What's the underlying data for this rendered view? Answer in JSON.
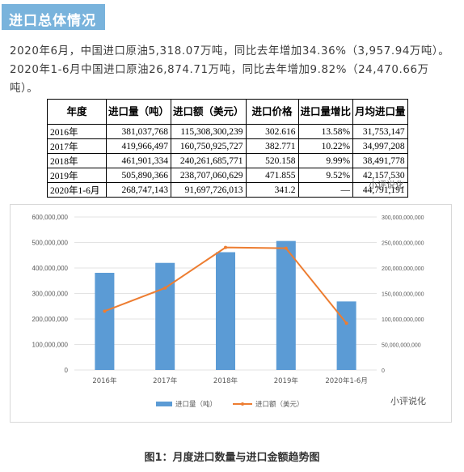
{
  "header": {
    "title": "进口总体情况"
  },
  "intro": "2020年6月，中国进口原油5,318.07万吨，同比去年增加34.36%（3,957.94万吨）。2020年1-6月中国进口原油26,874.71万吨，同比去年增加9.82%（24,470.66万吨）。",
  "table": {
    "headers": [
      "年度",
      "进口量（吨）",
      "进口额（美元）",
      "进口价格",
      "进口量增比",
      "月均进口量"
    ],
    "rows": [
      [
        "2016年",
        "381,037,768",
        "115,308,300,239",
        "302.616",
        "13.58%",
        "31,753,147"
      ],
      [
        "2017年",
        "419,966,497",
        "160,750,925,727",
        "382.771",
        "10.22%",
        "34,997,208"
      ],
      [
        "2018年",
        "461,901,334",
        "240,261,685,771",
        "520.158",
        "9.99%",
        "38,491,778"
      ],
      [
        "2019年",
        "505,890,366",
        "238,707,060,629",
        "471.855",
        "9.52%",
        "42,157,530"
      ],
      [
        "2020年1-6月",
        "268,747,143",
        "91,697,726,013",
        "341.2",
        "—",
        "44,791,191"
      ]
    ]
  },
  "watermark": "小评说化",
  "chart_data": {
    "type": "bar",
    "categories": [
      "2016年",
      "2017年",
      "2018年",
      "2019年",
      "2020年1-6月"
    ],
    "series": [
      {
        "name": "进口量（吨）",
        "type": "bar",
        "axis": "left",
        "color": "#5b9bd5",
        "values": [
          381037768,
          419966497,
          461901334,
          505890366,
          268747143
        ]
      },
      {
        "name": "进口额（美元）",
        "type": "line",
        "axis": "right",
        "color": "#ed7d31",
        "values": [
          115308300239,
          160750925727,
          240261685771,
          238707060629,
          91697726013
        ]
      }
    ],
    "left_axis": {
      "min": 0,
      "max": 600000000,
      "ticks": [
        "0",
        "100,000,000",
        "200,000,000",
        "300,000,000",
        "400,000,000",
        "500,000,000",
        "600,000,000"
      ]
    },
    "right_axis": {
      "min": 0,
      "max": 300000000000,
      "ticks": [
        "0",
        "50,000,000,000",
        "100,000,000,000",
        "150,000,000,000",
        "200,000,000,000",
        "250,000,000,000",
        "300,000,000,000"
      ]
    },
    "legend_position": "bottom",
    "grid": true
  },
  "chart_watermark": "小评说化",
  "caption": "图1：月度进口数量与进口金额趋势图"
}
